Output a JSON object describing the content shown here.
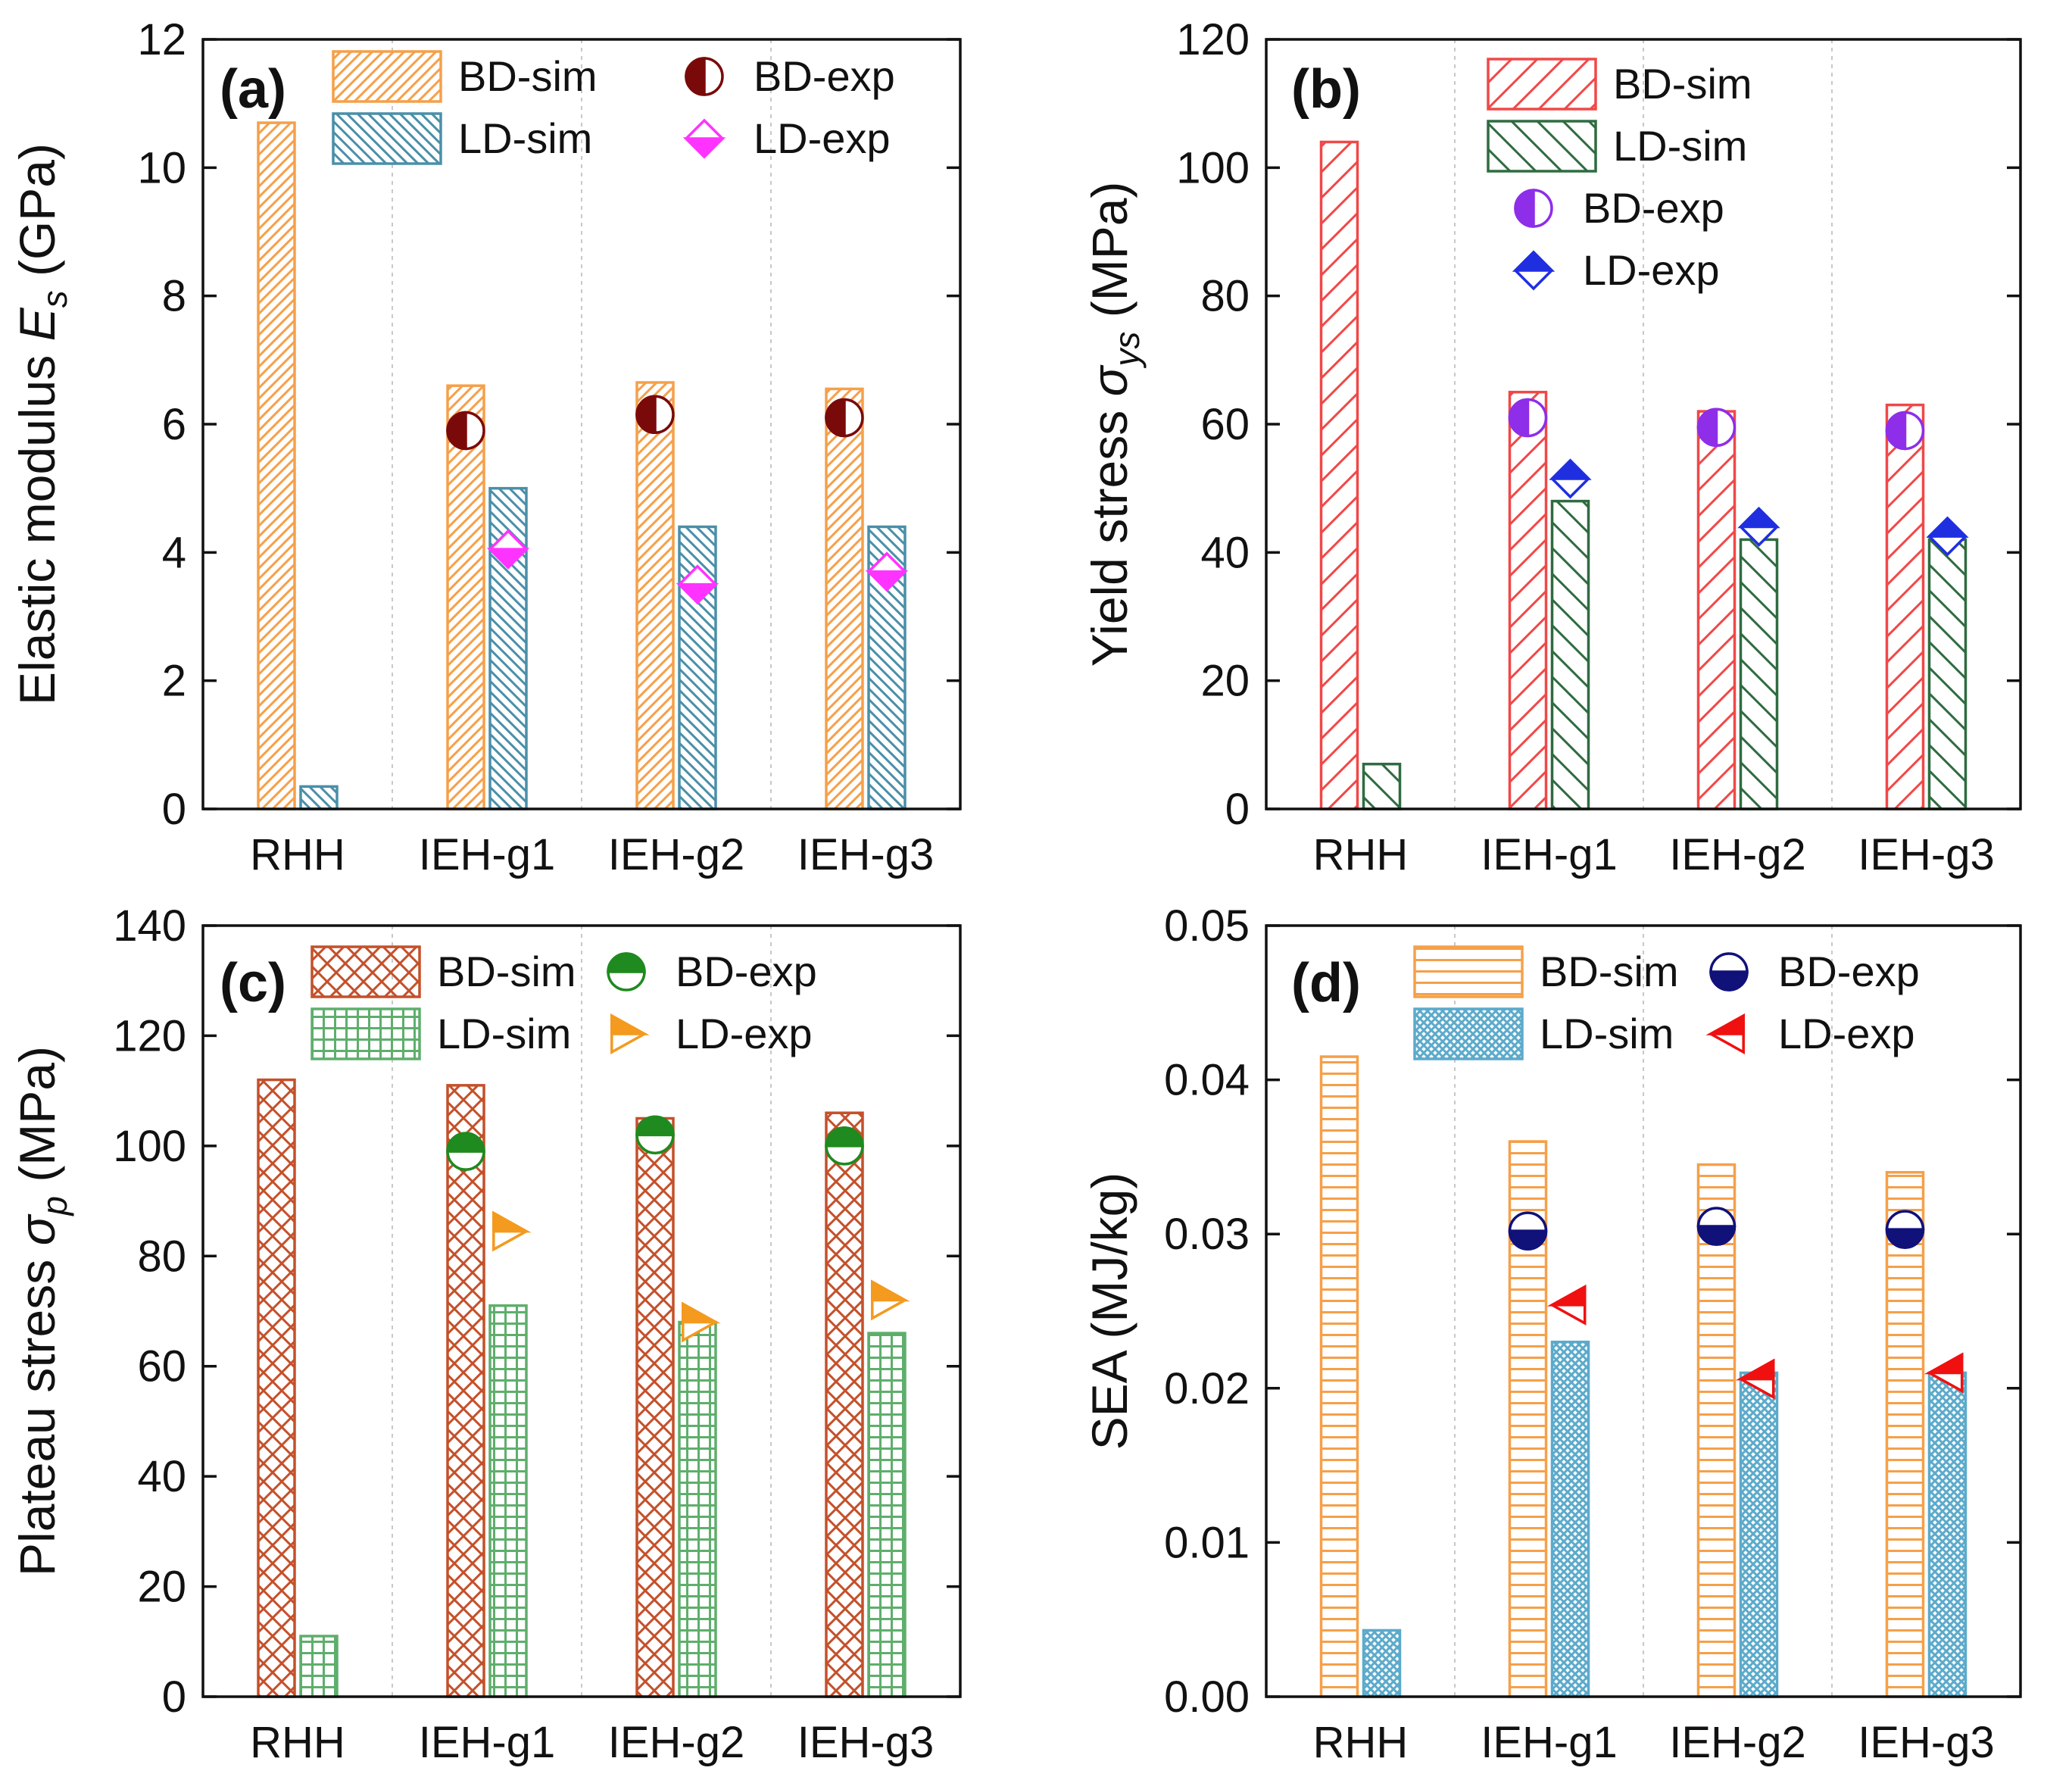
{
  "colors": {
    "orange": "#F5A04A",
    "teal": "#4A8FA8",
    "darkred": "#7A0A0A",
    "magenta": "#FF33FF",
    "red": "#F04848",
    "darkgreen": "#2F6B40",
    "violet": "#8E2EE8",
    "blue": "#1F2FE0",
    "brick": "#C4502A",
    "green": "#5FAE6C",
    "green_marker": "#1F8A1F",
    "orange_marker": "#F39A1F",
    "sky": "#5CAACB",
    "navy": "#11117A",
    "red_marker": "#F01010"
  },
  "chart_data": [
    {
      "id": "a",
      "type": "bar",
      "panel_label": "(a)",
      "title": "",
      "xlabel": "",
      "ylabel_main": "Elastic modulus",
      "ylabel_symbol": "E",
      "ylabel_sub": "s",
      "ylabel_unit": " (GPa)",
      "ylim": [
        0,
        12
      ],
      "yticks": [
        "0",
        "2",
        "4",
        "6",
        "8",
        "10",
        "12"
      ],
      "ytick_values": [
        0,
        2,
        4,
        6,
        8,
        10,
        12
      ],
      "categories": [
        "RHH",
        "IEH-g1",
        "IEH-g2",
        "IEH-g3"
      ],
      "grid": "vertical dotted separators",
      "legend_position": "top",
      "series": [
        {
          "name": "BD-sim",
          "kind": "bar",
          "slot": 0,
          "pattern": "diag-right",
          "color_key": "orange",
          "values": [
            10.7,
            6.6,
            6.65,
            6.55
          ]
        },
        {
          "name": "LD-sim",
          "kind": "bar",
          "slot": 1,
          "pattern": "diag-left",
          "color_key": "teal",
          "values": [
            0.35,
            5.0,
            4.4,
            4.4
          ]
        },
        {
          "name": "BD-exp",
          "kind": "marker",
          "slot": 0,
          "marker": "half-circle-left",
          "color_key": "darkred",
          "values": [
            null,
            5.9,
            6.15,
            6.1
          ]
        },
        {
          "name": "LD-exp",
          "kind": "marker",
          "slot": 1,
          "marker": "half-diamond-bottom",
          "color_key": "magenta",
          "values": [
            null,
            4.05,
            3.5,
            3.7
          ]
        }
      ],
      "legend": [
        {
          "label": "BD-sim",
          "series": 0
        },
        {
          "label": "BD-exp",
          "series": 2
        },
        {
          "label": "LD-sim",
          "series": 1
        },
        {
          "label": "LD-exp",
          "series": 3
        }
      ]
    },
    {
      "id": "b",
      "type": "bar",
      "panel_label": "(b)",
      "title": "",
      "xlabel": "",
      "ylabel_main": "Yield stress",
      "ylabel_symbol": "σ",
      "ylabel_sub": "ys",
      "ylabel_unit": " (MPa)",
      "ylim": [
        0,
        120
      ],
      "yticks": [
        "0",
        "20",
        "40",
        "60",
        "80",
        "100",
        "120"
      ],
      "ytick_values": [
        0,
        20,
        40,
        60,
        80,
        100,
        120
      ],
      "categories": [
        "RHH",
        "IEH-g1",
        "IEH-g2",
        "IEH-g3"
      ],
      "grid": "vertical dotted separators",
      "legend_position": "top-center",
      "series": [
        {
          "name": "BD-sim",
          "kind": "bar",
          "slot": 0,
          "pattern": "diag-right-sparse",
          "color_key": "red",
          "values": [
            104,
            65,
            62,
            63
          ]
        },
        {
          "name": "LD-sim",
          "kind": "bar",
          "slot": 1,
          "pattern": "diag-left-sparse",
          "color_key": "darkgreen",
          "values": [
            7,
            48,
            42,
            42
          ]
        },
        {
          "name": "BD-exp",
          "kind": "marker",
          "slot": 0,
          "marker": "half-circle-left",
          "color_key": "violet",
          "values": [
            null,
            61,
            59.5,
            59
          ]
        },
        {
          "name": "LD-exp",
          "kind": "marker",
          "slot": 1,
          "marker": "half-diamond-top",
          "color_key": "blue",
          "values": [
            null,
            51.5,
            44,
            42.5
          ]
        }
      ],
      "legend": [
        {
          "label": "BD-sim",
          "series": 0
        },
        {
          "label": "LD-sim",
          "series": 1
        },
        {
          "label": "BD-exp",
          "series": 2
        },
        {
          "label": "LD-exp",
          "series": 3
        }
      ]
    },
    {
      "id": "c",
      "type": "bar",
      "panel_label": "(c)",
      "title": "",
      "xlabel": "",
      "ylabel_main": "Plateau stress",
      "ylabel_symbol": "σ",
      "ylabel_sub": "p",
      "ylabel_unit": " (MPa)",
      "ylim": [
        0,
        140
      ],
      "yticks": [
        "0",
        "20",
        "40",
        "60",
        "80",
        "100",
        "120",
        "140"
      ],
      "ytick_values": [
        0,
        20,
        40,
        60,
        80,
        100,
        120,
        140
      ],
      "categories": [
        "RHH",
        "IEH-g1",
        "IEH-g2",
        "IEH-g3"
      ],
      "grid": "vertical dotted separators",
      "legend_position": "top",
      "series": [
        {
          "name": "BD-sim",
          "kind": "bar",
          "slot": 0,
          "pattern": "crosshatch-diag",
          "color_key": "brick",
          "values": [
            112,
            111,
            105,
            106
          ]
        },
        {
          "name": "LD-sim",
          "kind": "bar",
          "slot": 1,
          "pattern": "grid",
          "color_key": "green",
          "values": [
            11,
            71,
            68,
            66
          ]
        },
        {
          "name": "BD-exp",
          "kind": "marker",
          "slot": 0,
          "marker": "half-circle-top",
          "color_key": "green_marker",
          "values": [
            null,
            99,
            102,
            100
          ]
        },
        {
          "name": "LD-exp",
          "kind": "marker",
          "slot": 1,
          "marker": "half-triangle-right",
          "color_key": "orange_marker",
          "values": [
            null,
            84.5,
            68,
            72
          ]
        }
      ],
      "legend": [
        {
          "label": "BD-sim",
          "series": 0
        },
        {
          "label": "BD-exp",
          "series": 2
        },
        {
          "label": "LD-sim",
          "series": 1
        },
        {
          "label": "LD-exp",
          "series": 3
        }
      ]
    },
    {
      "id": "d",
      "type": "bar",
      "panel_label": "(d)",
      "title": "",
      "xlabel": "",
      "ylabel_main": "SEA (MJ/kg)",
      "ylabel_symbol": "",
      "ylabel_sub": "",
      "ylabel_unit": "",
      "ylim": [
        0,
        0.05
      ],
      "yticks": [
        "0.00",
        "0.01",
        "0.02",
        "0.03",
        "0.04",
        "0.05"
      ],
      "ytick_values": [
        0,
        0.01,
        0.02,
        0.03,
        0.04,
        0.05
      ],
      "categories": [
        "RHH",
        "IEH-g1",
        "IEH-g2",
        "IEH-g3"
      ],
      "grid": "vertical dotted separators",
      "legend_position": "top",
      "series": [
        {
          "name": "BD-sim",
          "kind": "bar",
          "slot": 0,
          "pattern": "horizontal",
          "color_key": "orange",
          "values": [
            0.0415,
            0.036,
            0.0345,
            0.034
          ]
        },
        {
          "name": "LD-sim",
          "kind": "bar",
          "slot": 1,
          "pattern": "crosshatch-fine",
          "color_key": "sky",
          "values": [
            0.0043,
            0.023,
            0.021,
            0.021
          ]
        },
        {
          "name": "BD-exp",
          "kind": "marker",
          "slot": 0,
          "marker": "half-circle-bottom",
          "color_key": "navy",
          "values": [
            null,
            0.0302,
            0.0305,
            0.0303
          ]
        },
        {
          "name": "LD-exp",
          "kind": "marker",
          "slot": 1,
          "marker": "half-triangle-left",
          "color_key": "red_marker",
          "values": [
            null,
            0.0254,
            0.0206,
            0.021
          ]
        }
      ],
      "legend": [
        {
          "label": "BD-sim",
          "series": 0
        },
        {
          "label": "BD-exp",
          "series": 2
        },
        {
          "label": "LD-sim",
          "series": 1
        },
        {
          "label": "LD-exp",
          "series": 3
        }
      ]
    }
  ]
}
